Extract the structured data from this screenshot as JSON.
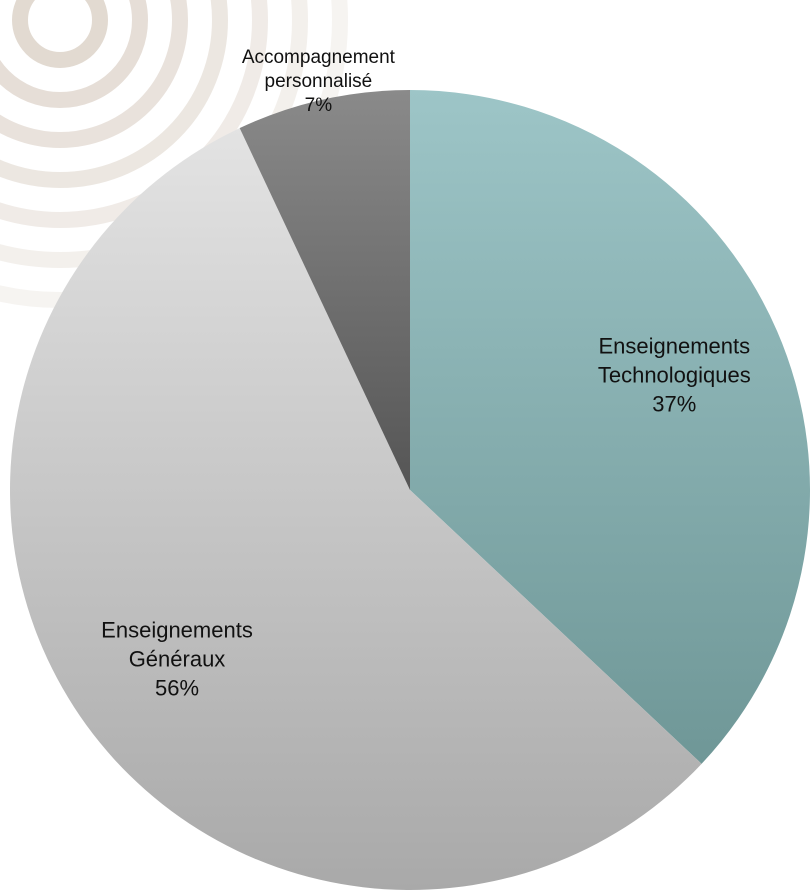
{
  "chart_data": {
    "type": "pie",
    "slices": [
      {
        "label_lines": [
          "Enseignements",
          "Technologiques"
        ],
        "value": 37,
        "value_label": "37%",
        "color_top": "#9dc5c7",
        "color_bottom": "#6f9797"
      },
      {
        "label_lines": [
          "Enseignements",
          "Généraux"
        ],
        "value": 56,
        "value_label": "56%",
        "color_top": "#e3e3e3",
        "color_bottom": "#a9a9a9"
      },
      {
        "label_lines": [
          "Accompagnement",
          "personnalisé"
        ],
        "value": 7,
        "value_label": "7%",
        "color_top": "#8a8a8a",
        "color_bottom": "#555555"
      }
    ],
    "start_angle_deg": 0,
    "direction": "clockwise",
    "background_decoration": "concentric-rings"
  }
}
